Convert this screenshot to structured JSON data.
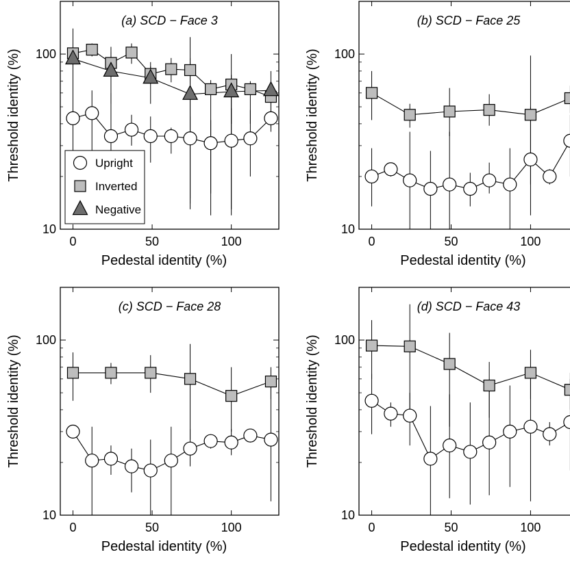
{
  "chart_data": [
    {
      "type": "line",
      "title": "(a) SCD − Face 3",
      "xlabel": "Pedestal identity (%)",
      "ylabel": "Threshold identity (%)",
      "xlim": [
        -8,
        130
      ],
      "ylim": [
        10,
        200
      ],
      "yscale": "log",
      "x_ticks": [
        0,
        50,
        100
      ],
      "y_ticks": [
        10,
        100
      ],
      "legend": {
        "position": "bottom-left",
        "entries": [
          "Upright",
          "Inverted",
          "Negative"
        ]
      },
      "series": [
        {
          "name": "Upright",
          "marker": "circle",
          "points": [
            {
              "x": 0,
              "y": 43,
              "lo": 14,
              "hi": 115
            },
            {
              "x": 12,
              "y": 46,
              "lo": 25,
              "hi": 62
            },
            {
              "x": 24,
              "y": 34,
              "lo": 18,
              "hi": 60
            },
            {
              "x": 37,
              "y": 37,
              "lo": 30,
              "hi": 45
            },
            {
              "x": 49,
              "y": 34,
              "lo": 24,
              "hi": 44
            },
            {
              "x": 62,
              "y": 34,
              "lo": 27,
              "hi": 38
            },
            {
              "x": 74,
              "y": 33,
              "lo": 14,
              "hi": 44
            },
            {
              "x": 87,
              "y": 31,
              "lo": 16,
              "hi": 42
            },
            {
              "x": 100,
              "y": 32,
              "lo": 13,
              "hi": 49
            },
            {
              "x": 112,
              "y": 33,
              "lo": 20,
              "hi": 48
            },
            {
              "x": 125,
              "y": 43,
              "lo": 38,
              "hi": 50
            }
          ]
        },
        {
          "name": "Inverted",
          "marker": "square",
          "points": [
            {
              "x": 0,
              "y": 101,
              "lo": 70,
              "hi": 140
            },
            {
              "x": 12,
              "y": 106,
              "lo": 97,
              "hi": 115
            },
            {
              "x": 24,
              "y": 89,
              "lo": 76,
              "hi": 103
            },
            {
              "x": 37,
              "y": 102,
              "lo": 88,
              "hi": 115
            },
            {
              "x": 49,
              "y": 77,
              "lo": 68,
              "hi": 85
            },
            {
              "x": 62,
              "y": 82,
              "lo": 69,
              "hi": 95
            },
            {
              "x": 74,
              "y": 81,
              "lo": 15,
              "hi": 95
            },
            {
              "x": 87,
              "y": 63,
              "lo": 12,
              "hi": 71
            },
            {
              "x": 100,
              "y": 67,
              "lo": 12,
              "hi": 76
            },
            {
              "x": 112,
              "y": 63,
              "lo": 40,
              "hi": 70
            },
            {
              "x": 125,
              "y": 57,
              "lo": 50,
              "hi": 65
            }
          ]
        },
        {
          "name": "Negative",
          "marker": "triangle",
          "points": [
            {
              "x": 0,
              "y": 94,
              "lo": 14,
              "hi": 135
            },
            {
              "x": 24,
              "y": 80,
              "lo": 52,
              "hi": 110
            },
            {
              "x": 49,
              "y": 73,
              "lo": 52,
              "hi": 90
            },
            {
              "x": 74,
              "y": 59,
              "lo": 13,
              "hi": 125
            },
            {
              "x": 100,
              "y": 61,
              "lo": 40,
              "hi": 100
            },
            {
              "x": 125,
              "y": 62,
              "lo": 36,
              "hi": 80
            }
          ]
        }
      ]
    },
    {
      "type": "line",
      "title": "(b) SCD − Face 25",
      "xlabel": "Pedestal identity (%)",
      "ylabel": "Threshold identity (%)",
      "xlim": [
        -8,
        130
      ],
      "ylim": [
        10,
        200
      ],
      "yscale": "log",
      "x_ticks": [
        0,
        50,
        100
      ],
      "y_ticks": [
        10,
        100
      ],
      "series": [
        {
          "name": "Upright",
          "marker": "circle",
          "points": [
            {
              "x": 0,
              "y": 20,
              "lo": 13.5,
              "hi": 29
            },
            {
              "x": 12,
              "y": 22,
              "lo": 20,
              "hi": 24
            },
            {
              "x": 24,
              "y": 19,
              "lo": 10,
              "hi": 36
            },
            {
              "x": 37,
              "y": 17,
              "lo": 10,
              "hi": 28
            },
            {
              "x": 49,
              "y": 18,
              "lo": 10,
              "hi": 36
            },
            {
              "x": 62,
              "y": 17,
              "lo": 13.5,
              "hi": 21
            },
            {
              "x": 74,
              "y": 19,
              "lo": 16,
              "hi": 24
            },
            {
              "x": 87,
              "y": 18,
              "lo": 10,
              "hi": 29
            },
            {
              "x": 100,
              "y": 25,
              "lo": 12,
              "hi": 50
            },
            {
              "x": 112,
              "y": 20,
              "lo": 18,
              "hi": 22
            },
            {
              "x": 125,
              "y": 32,
              "lo": 20,
              "hi": 45
            }
          ]
        },
        {
          "name": "Inverted",
          "marker": "square",
          "points": [
            {
              "x": 0,
              "y": 60,
              "lo": 42,
              "hi": 80
            },
            {
              "x": 24,
              "y": 45,
              "lo": 38,
              "hi": 52
            },
            {
              "x": 49,
              "y": 47,
              "lo": 34,
              "hi": 64
            },
            {
              "x": 74,
              "y": 48,
              "lo": 39,
              "hi": 59
            },
            {
              "x": 100,
              "y": 45,
              "lo": 18,
              "hi": 98
            },
            {
              "x": 125,
              "y": 56,
              "lo": 46,
              "hi": 66
            }
          ]
        }
      ]
    },
    {
      "type": "line",
      "title": "(c) SCD − Face 28",
      "xlabel": "Pedestal identity (%)",
      "ylabel": "Threshold identity (%)",
      "xlim": [
        -8,
        130
      ],
      "ylim": [
        10,
        200
      ],
      "yscale": "log",
      "x_ticks": [
        0,
        50,
        100
      ],
      "y_ticks": [
        10,
        100
      ],
      "series": [
        {
          "name": "Upright",
          "marker": "circle",
          "points": [
            {
              "x": 0,
              "y": 30,
              "lo": 28,
              "hi": 32
            },
            {
              "x": 12,
              "y": 20.5,
              "lo": 10,
              "hi": 32
            },
            {
              "x": 24,
              "y": 21,
              "lo": 17,
              "hi": 25
            },
            {
              "x": 37,
              "y": 19,
              "lo": 13.5,
              "hi": 24
            },
            {
              "x": 49,
              "y": 18,
              "lo": 10,
              "hi": 27
            },
            {
              "x": 62,
              "y": 20.5,
              "lo": 10,
              "hi": 32
            },
            {
              "x": 74,
              "y": 24,
              "lo": 19,
              "hi": 31
            },
            {
              "x": 87,
              "y": 26.5,
              "lo": 24,
              "hi": 29
            },
            {
              "x": 100,
              "y": 26,
              "lo": 22,
              "hi": 31
            },
            {
              "x": 112,
              "y": 28.5,
              "lo": 26,
              "hi": 31
            },
            {
              "x": 125,
              "y": 27,
              "lo": 12,
              "hi": 60
            }
          ]
        },
        {
          "name": "Inverted",
          "marker": "square",
          "points": [
            {
              "x": 0,
              "y": 65,
              "lo": 45,
              "hi": 85
            },
            {
              "x": 24,
              "y": 65,
              "lo": 56,
              "hi": 74
            },
            {
              "x": 49,
              "y": 65,
              "lo": 50,
              "hi": 82
            },
            {
              "x": 74,
              "y": 60,
              "lo": 27,
              "hi": 95
            },
            {
              "x": 100,
              "y": 48,
              "lo": 30,
              "hi": 70
            },
            {
              "x": 125,
              "y": 58,
              "lo": 46,
              "hi": 70
            }
          ]
        }
      ]
    },
    {
      "type": "line",
      "title": "(d) SCD − Face 43",
      "xlabel": "Pedestal identity (%)",
      "ylabel": "Threshold identity (%)",
      "xlim": [
        -8,
        130
      ],
      "ylim": [
        10,
        200
      ],
      "yscale": "log",
      "x_ticks": [
        0,
        50,
        100
      ],
      "y_ticks": [
        10,
        100
      ],
      "series": [
        {
          "name": "Upright",
          "marker": "circle",
          "points": [
            {
              "x": 0,
              "y": 45,
              "lo": 29,
              "hi": 64
            },
            {
              "x": 12,
              "y": 38,
              "lo": 32,
              "hi": 44
            },
            {
              "x": 24,
              "y": 37,
              "lo": 25,
              "hi": 50
            },
            {
              "x": 37,
              "y": 21,
              "lo": 10,
              "hi": 42
            },
            {
              "x": 49,
              "y": 25,
              "lo": 12.5,
              "hi": 49
            },
            {
              "x": 62,
              "y": 23,
              "lo": 11.5,
              "hi": 44
            },
            {
              "x": 74,
              "y": 26,
              "lo": 13,
              "hi": 52
            },
            {
              "x": 87,
              "y": 30,
              "lo": 14.5,
              "hi": 55
            },
            {
              "x": 100,
              "y": 32,
              "lo": 12,
              "hi": 60
            },
            {
              "x": 112,
              "y": 29,
              "lo": 25,
              "hi": 34
            },
            {
              "x": 125,
              "y": 34,
              "lo": 18,
              "hi": 60
            }
          ]
        },
        {
          "name": "Inverted",
          "marker": "square",
          "points": [
            {
              "x": 0,
              "y": 93,
              "lo": 60,
              "hi": 130
            },
            {
              "x": 24,
              "y": 92,
              "lo": 40,
              "hi": 160
            },
            {
              "x": 49,
              "y": 73,
              "lo": 32,
              "hi": 110
            },
            {
              "x": 74,
              "y": 55,
              "lo": 36,
              "hi": 75
            },
            {
              "x": 100,
              "y": 65,
              "lo": 46,
              "hi": 88
            },
            {
              "x": 125,
              "y": 52,
              "lo": 40,
              "hi": 65
            }
          ]
        }
      ]
    }
  ]
}
